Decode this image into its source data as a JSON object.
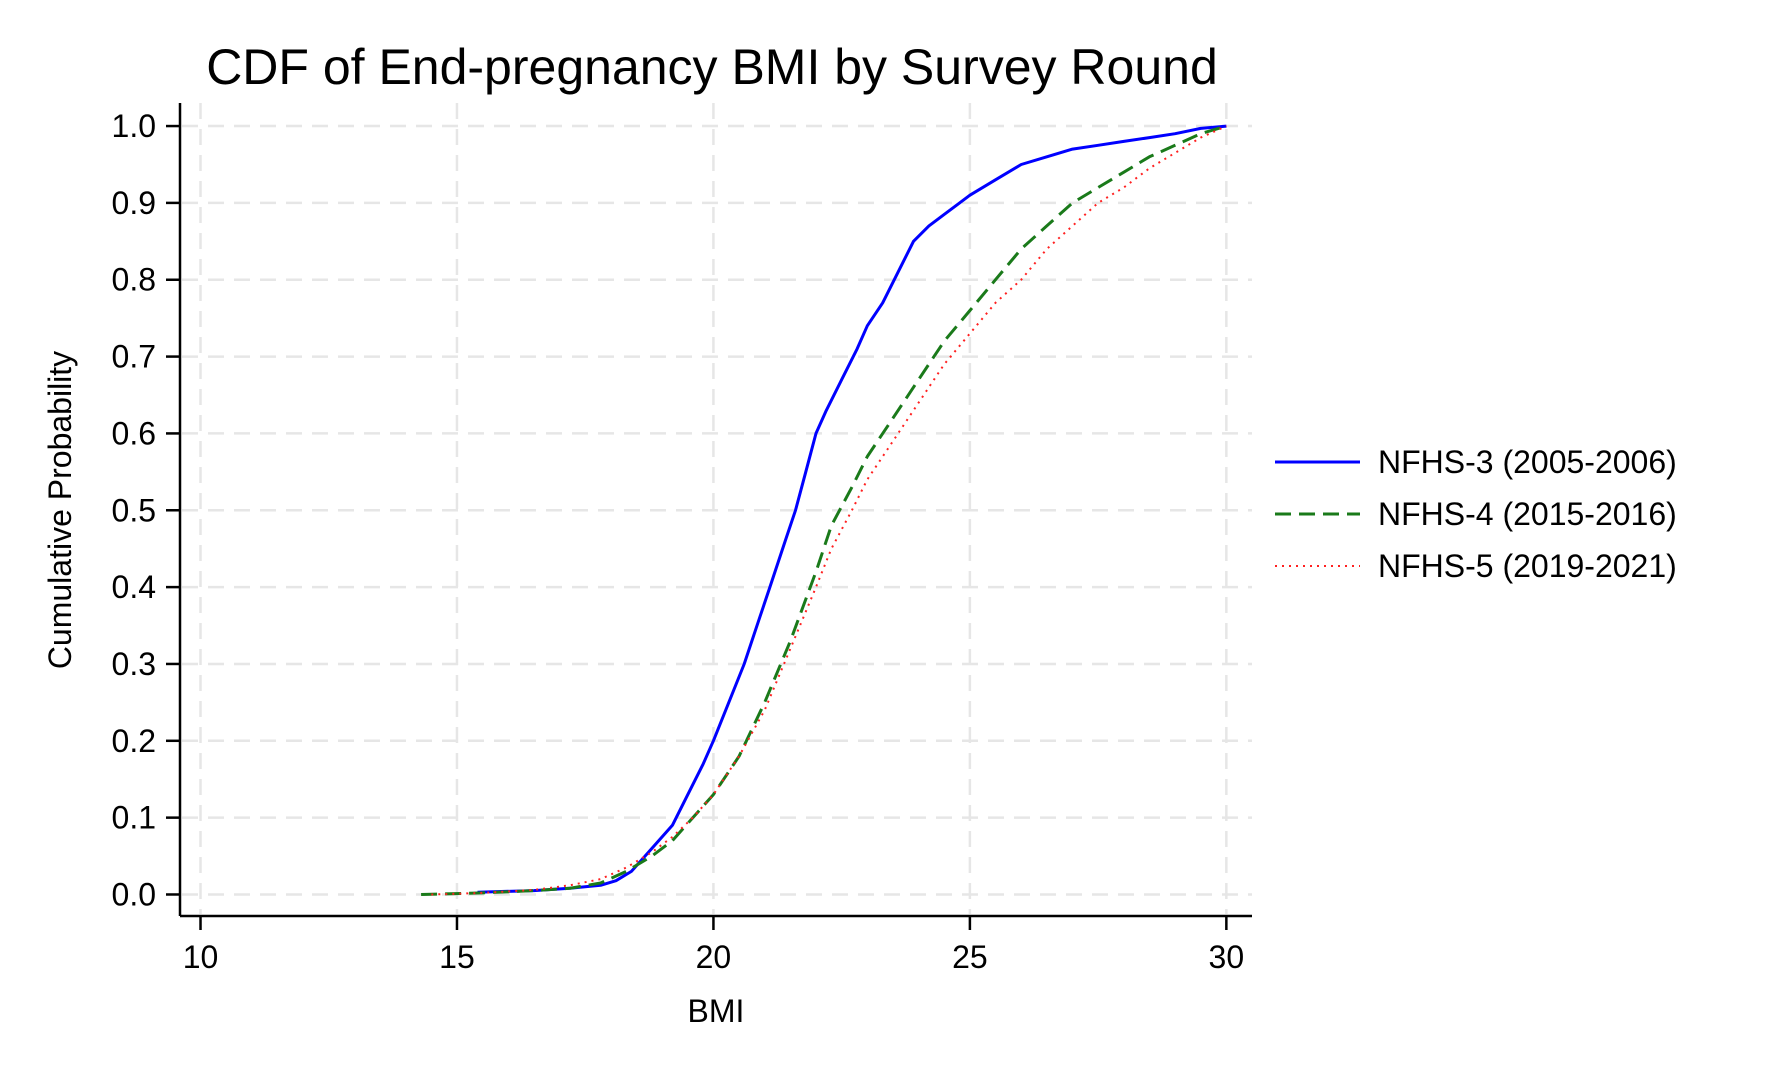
{
  "chart_data": {
    "type": "line",
    "title": "CDF of End-pregnancy BMI by Survey Round",
    "xlabel": "BMI",
    "ylabel": "Cumulative Probability",
    "xlim": [
      9.6,
      30.5
    ],
    "ylim": [
      -0.028,
      1.03
    ],
    "x_ticks": [
      10,
      15,
      20,
      25,
      30
    ],
    "y_ticks": [
      0.0,
      0.1,
      0.2,
      0.3,
      0.4,
      0.5,
      0.6,
      0.7,
      0.8,
      0.9,
      1.0
    ],
    "x_tick_labels": [
      "10",
      "15",
      "20",
      "25",
      "30"
    ],
    "y_tick_labels": [
      "0.0",
      "0.1",
      "0.2",
      "0.3",
      "0.4",
      "0.5",
      "0.6",
      "0.7",
      "0.8",
      "0.9",
      "1.0"
    ],
    "grid": true,
    "legend_position": "right",
    "series": [
      {
        "name": "NFHS-3 (2005-2006)",
        "color": "#0000ff",
        "style": "solid",
        "x": [
          15.4,
          16.5,
          17.2,
          17.8,
          18.1,
          18.4,
          18.8,
          19.2,
          19.5,
          19.8,
          20.0,
          20.3,
          20.6,
          20.9,
          21.1,
          21.4,
          21.6,
          21.8,
          22.0,
          22.2,
          22.5,
          22.8,
          23.0,
          23.3,
          23.6,
          23.9,
          24.2,
          24.5,
          24.8,
          25.0,
          25.5,
          26.0,
          26.5,
          27.0,
          27.5,
          28.0,
          28.5,
          29.0,
          29.5,
          30.0
        ],
        "y": [
          0.003,
          0.005,
          0.008,
          0.012,
          0.018,
          0.03,
          0.06,
          0.09,
          0.13,
          0.17,
          0.2,
          0.25,
          0.3,
          0.36,
          0.4,
          0.46,
          0.5,
          0.55,
          0.6,
          0.63,
          0.67,
          0.71,
          0.74,
          0.77,
          0.81,
          0.85,
          0.87,
          0.885,
          0.9,
          0.91,
          0.93,
          0.95,
          0.96,
          0.97,
          0.975,
          0.98,
          0.985,
          0.99,
          0.997,
          1.0
        ]
      },
      {
        "name": "NFHS-4 (2015-2016)",
        "color": "#1a7a1a",
        "style": "dashed",
        "x": [
          14.3,
          15.5,
          16.5,
          17.2,
          17.8,
          18.3,
          18.8,
          19.2,
          19.6,
          20.0,
          20.5,
          21.0,
          21.5,
          22.0,
          22.3,
          22.7,
          23.0,
          23.5,
          24.0,
          24.5,
          25.0,
          25.5,
          26.0,
          26.5,
          27.0,
          27.5,
          28.0,
          28.5,
          29.0,
          29.5,
          30.0
        ],
        "y": [
          0.0,
          0.002,
          0.005,
          0.008,
          0.015,
          0.03,
          0.05,
          0.07,
          0.1,
          0.13,
          0.18,
          0.25,
          0.33,
          0.42,
          0.48,
          0.53,
          0.57,
          0.62,
          0.67,
          0.72,
          0.76,
          0.8,
          0.84,
          0.87,
          0.9,
          0.92,
          0.94,
          0.96,
          0.975,
          0.99,
          1.0
        ]
      },
      {
        "name": "NFHS-5 (2019-2021)",
        "color": "#ff2020",
        "style": "dotted",
        "x": [
          14.5,
          15.5,
          16.5,
          17.2,
          17.8,
          18.3,
          18.8,
          19.2,
          19.6,
          20.0,
          20.5,
          21.0,
          21.5,
          22.0,
          22.3,
          22.7,
          23.0,
          23.5,
          24.0,
          24.5,
          25.0,
          25.5,
          26.0,
          26.5,
          27.0,
          27.5,
          28.0,
          28.5,
          29.0,
          29.5,
          30.0
        ],
        "y": [
          0.0,
          0.002,
          0.006,
          0.012,
          0.02,
          0.035,
          0.055,
          0.075,
          0.1,
          0.13,
          0.18,
          0.24,
          0.32,
          0.4,
          0.45,
          0.5,
          0.54,
          0.59,
          0.64,
          0.69,
          0.73,
          0.77,
          0.8,
          0.84,
          0.87,
          0.9,
          0.92,
          0.945,
          0.965,
          0.985,
          1.0
        ]
      }
    ]
  }
}
